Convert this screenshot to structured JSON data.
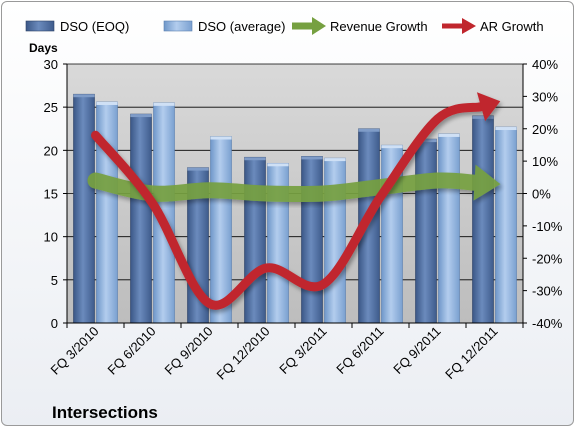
{
  "chart_data": {
    "type": "bar",
    "title": "Intersections",
    "ylabel": "Days",
    "categories": [
      "FQ 3/2010",
      "FQ 6/2010",
      "FQ 9/2010",
      "FQ 12/2010",
      "FQ 3/2011",
      "FQ 6/2011",
      "FQ 9/2011",
      "FQ 12/2011"
    ],
    "ylim": [
      0,
      30
    ],
    "yticks": [
      "0",
      "5",
      "10",
      "15",
      "20",
      "25",
      "30"
    ],
    "y2lim": [
      -40,
      40
    ],
    "y2ticks": [
      "-40%",
      "-30%",
      "-20%",
      "-10%",
      "0%",
      "10%",
      "20%",
      "30%",
      "40%"
    ],
    "grid": true,
    "legend_position": "top",
    "series": [
      {
        "name": "DSO (EOQ)",
        "type": "bar",
        "axis": "left",
        "color": "#4f6fa0",
        "values": [
          26.5,
          24.2,
          18.0,
          19.2,
          19.3,
          22.5,
          21.3,
          24.0
        ]
      },
      {
        "name": "DSO (average)",
        "type": "bar",
        "axis": "left",
        "color": "#8eb4e3",
        "values": [
          25.6,
          25.5,
          21.6,
          18.5,
          19.1,
          20.6,
          21.9,
          22.7
        ]
      },
      {
        "name": "Revenue Growth",
        "type": "line",
        "axis": "right",
        "color": "#76a040",
        "values": [
          4,
          0,
          1,
          0,
          0,
          2,
          4,
          3
        ]
      },
      {
        "name": "AR Growth",
        "type": "line",
        "axis": "right",
        "color": "#c0262d",
        "values": [
          18,
          -3,
          -34,
          -23,
          -28,
          -1,
          23,
          28
        ]
      }
    ]
  }
}
